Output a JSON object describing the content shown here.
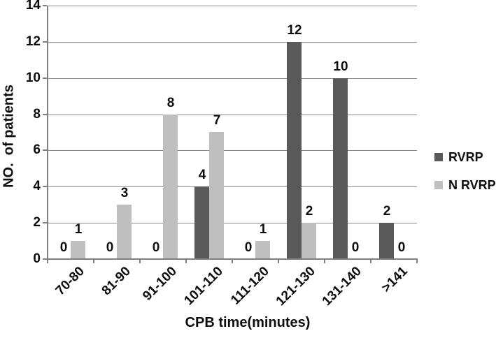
{
  "chart_data": {
    "type": "bar",
    "title": "",
    "xlabel": "CPB time(minutes)",
    "ylabel": "NO.  of patients",
    "categories": [
      "70-80",
      "81-90",
      "91-100",
      "101-110",
      "111-120",
      "121-130",
      "131-140",
      ">141"
    ],
    "series": [
      {
        "name": "RVRP",
        "color": "#595959",
        "values": [
          0,
          0,
          0,
          4,
          0,
          12,
          10,
          2
        ]
      },
      {
        "name": "N RVRP",
        "color": "#bfbfbf",
        "values": [
          1,
          3,
          8,
          7,
          1,
          2,
          0,
          0
        ]
      }
    ],
    "ylim": [
      0,
      14
    ],
    "yticks": [
      0,
      2,
      4,
      6,
      8,
      10,
      12,
      14
    ],
    "grid": true,
    "legend_position": "right",
    "bar_value_labels": true
  }
}
